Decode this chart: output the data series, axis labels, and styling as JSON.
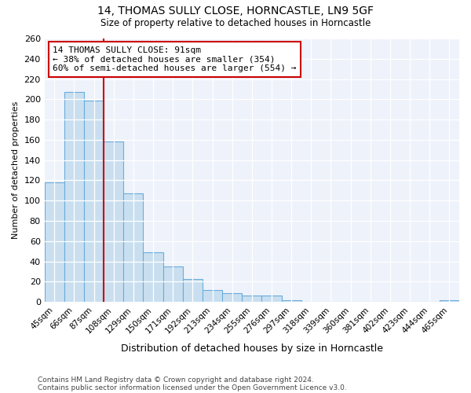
{
  "title": "14, THOMAS SULLY CLOSE, HORNCASTLE, LN9 5GF",
  "subtitle": "Size of property relative to detached houses in Horncastle",
  "xlabel": "Distribution of detached houses by size in Horncastle",
  "ylabel": "Number of detached properties",
  "bar_labels": [
    "45sqm",
    "66sqm",
    "87sqm",
    "108sqm",
    "129sqm",
    "150sqm",
    "171sqm",
    "192sqm",
    "213sqm",
    "234sqm",
    "255sqm",
    "276sqm",
    "297sqm",
    "318sqm",
    "339sqm",
    "360sqm",
    "381sqm",
    "402sqm",
    "423sqm",
    "444sqm",
    "465sqm"
  ],
  "bar_values": [
    118,
    207,
    199,
    158,
    107,
    49,
    35,
    23,
    12,
    9,
    6,
    6,
    2,
    0,
    0,
    0,
    0,
    0,
    0,
    0,
    2
  ],
  "bar_color": "#c9dff0",
  "bar_edge_color": "#6aacda",
  "vline_x": 2.5,
  "vline_color": "#cc0000",
  "annotation_title": "14 THOMAS SULLY CLOSE: 91sqm",
  "annotation_line1": "← 38% of detached houses are smaller (354)",
  "annotation_line2": "60% of semi-detached houses are larger (554) →",
  "annotation_box_color": "#ffffff",
  "annotation_box_edge": "#cc0000",
  "ylim": [
    0,
    260
  ],
  "yticks": [
    0,
    20,
    40,
    60,
    80,
    100,
    120,
    140,
    160,
    180,
    200,
    220,
    240,
    260
  ],
  "footer1": "Contains HM Land Registry data © Crown copyright and database right 2024.",
  "footer2": "Contains public sector information licensed under the Open Government Licence v3.0.",
  "bg_color": "#ffffff",
  "plot_bg_color": "#eef2fb"
}
